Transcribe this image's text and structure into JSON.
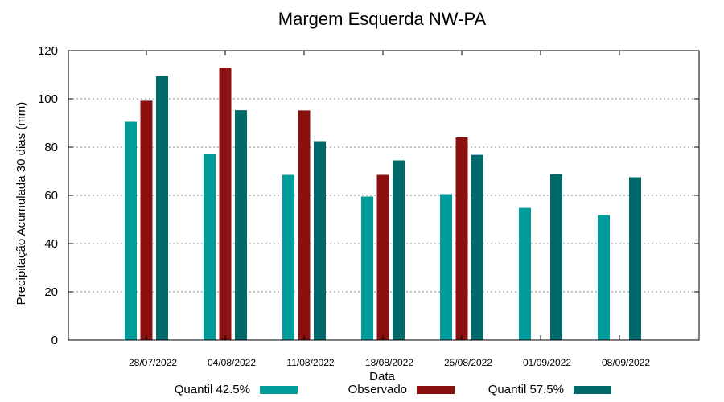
{
  "chart_data": {
    "type": "bar",
    "title": "Margem Esquerda NW-PA",
    "xlabel": "Data",
    "ylabel": "Precipitação Acumulada 30 dias (mm)",
    "ylim": [
      0,
      120
    ],
    "yticks": [
      0,
      20,
      40,
      60,
      80,
      100,
      120
    ],
    "grid": true,
    "legend_position": "bottom",
    "categories": [
      "28/07/2022",
      "04/08/2022",
      "11/08/2022",
      "18/08/2022",
      "25/08/2022",
      "01/09/2022",
      "08/09/2022"
    ],
    "series": [
      {
        "name": "Quantil 42.5%",
        "color": "#009b9b",
        "values": [
          90.5,
          77,
          68.5,
          59.5,
          60.5,
          54.8,
          51.8
        ]
      },
      {
        "name": "Observado",
        "color": "#8b1010",
        "values": [
          99.2,
          113,
          95.2,
          68.5,
          84,
          null,
          null
        ]
      },
      {
        "name": "Quantil 57.5%",
        "color": "#006a6a",
        "values": [
          109.5,
          95.3,
          82.5,
          74.5,
          76.8,
          68.8,
          67.5
        ]
      }
    ]
  }
}
